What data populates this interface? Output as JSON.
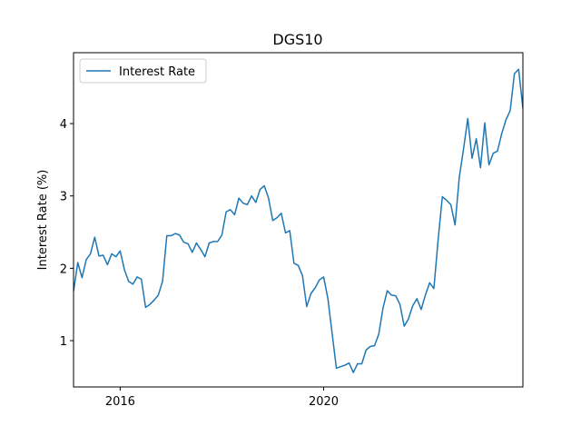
{
  "chart_data": {
    "type": "line",
    "title": "DGS10",
    "ylabel": "Interest Rate (%)",
    "x": [
      "2015-02",
      "2015-03",
      "2015-04",
      "2015-05",
      "2015-06",
      "2015-07",
      "2015-08",
      "2015-09",
      "2015-10",
      "2015-11",
      "2015-12",
      "2016-01",
      "2016-02",
      "2016-03",
      "2016-04",
      "2016-05",
      "2016-06",
      "2016-07",
      "2016-08",
      "2016-09",
      "2016-10",
      "2016-11",
      "2016-12",
      "2017-01",
      "2017-02",
      "2017-03",
      "2017-04",
      "2017-05",
      "2017-06",
      "2017-07",
      "2017-08",
      "2017-09",
      "2017-10",
      "2017-11",
      "2017-12",
      "2018-01",
      "2018-02",
      "2018-03",
      "2018-04",
      "2018-05",
      "2018-06",
      "2018-07",
      "2018-08",
      "2018-09",
      "2018-10",
      "2018-11",
      "2018-12",
      "2019-01",
      "2019-02",
      "2019-03",
      "2019-04",
      "2019-05",
      "2019-06",
      "2019-07",
      "2019-08",
      "2019-09",
      "2019-10",
      "2019-11",
      "2019-12",
      "2020-01",
      "2020-02",
      "2020-03",
      "2020-04",
      "2020-05",
      "2020-06",
      "2020-07",
      "2020-08",
      "2020-09",
      "2020-10",
      "2020-11",
      "2020-12",
      "2021-01",
      "2021-02",
      "2021-03",
      "2021-04",
      "2021-05",
      "2021-06",
      "2021-07",
      "2021-08",
      "2021-09",
      "2021-10",
      "2021-11",
      "2021-12",
      "2022-01",
      "2022-02",
      "2022-03",
      "2022-04",
      "2022-05",
      "2022-06",
      "2022-07",
      "2022-08",
      "2022-09",
      "2022-10",
      "2022-11",
      "2022-12",
      "2023-01",
      "2023-02",
      "2023-03",
      "2023-04",
      "2023-05",
      "2023-06",
      "2023-07",
      "2023-08",
      "2023-09",
      "2023-10",
      "2023-11",
      "2023-12"
    ],
    "series": [
      {
        "name": "Interest Rate",
        "color": "#1f77b4",
        "values": [
          1.68,
          2.08,
          1.87,
          2.12,
          2.2,
          2.43,
          2.17,
          2.18,
          2.05,
          2.2,
          2.16,
          2.24,
          1.98,
          1.82,
          1.78,
          1.88,
          1.85,
          1.46,
          1.5,
          1.56,
          1.63,
          1.82,
          2.45,
          2.45,
          2.48,
          2.46,
          2.36,
          2.34,
          2.22,
          2.35,
          2.26,
          2.16,
          2.35,
          2.37,
          2.37,
          2.46,
          2.78,
          2.81,
          2.74,
          2.97,
          2.9,
          2.88,
          3.0,
          2.91,
          3.09,
          3.14,
          2.97,
          2.66,
          2.7,
          2.76,
          2.49,
          2.52,
          2.07,
          2.04,
          1.9,
          1.47,
          1.65,
          1.73,
          1.84,
          1.88,
          1.58,
          1.1,
          0.62,
          0.64,
          0.66,
          0.69,
          0.56,
          0.68,
          0.68,
          0.87,
          0.92,
          0.93,
          1.09,
          1.45,
          1.69,
          1.63,
          1.62,
          1.5,
          1.2,
          1.3,
          1.48,
          1.58,
          1.43,
          1.63,
          1.8,
          1.72,
          2.39,
          2.99,
          2.94,
          2.88,
          2.6,
          3.26,
          3.65,
          4.07,
          3.52,
          3.79,
          3.39,
          4.01,
          3.43,
          3.59,
          3.62,
          3.86,
          4.05,
          4.18,
          4.69,
          4.75,
          4.21
        ]
      }
    ],
    "xlim": [
      "2015-02",
      "2023-12"
    ],
    "xticks": [
      {
        "value": "2016-01",
        "label": "2016"
      },
      {
        "value": "2020-01",
        "label": "2020"
      }
    ],
    "ylim": [
      0.36,
      4.98
    ],
    "yticks": [
      1,
      2,
      3,
      4
    ],
    "legend": "upper left",
    "grid": false
  }
}
